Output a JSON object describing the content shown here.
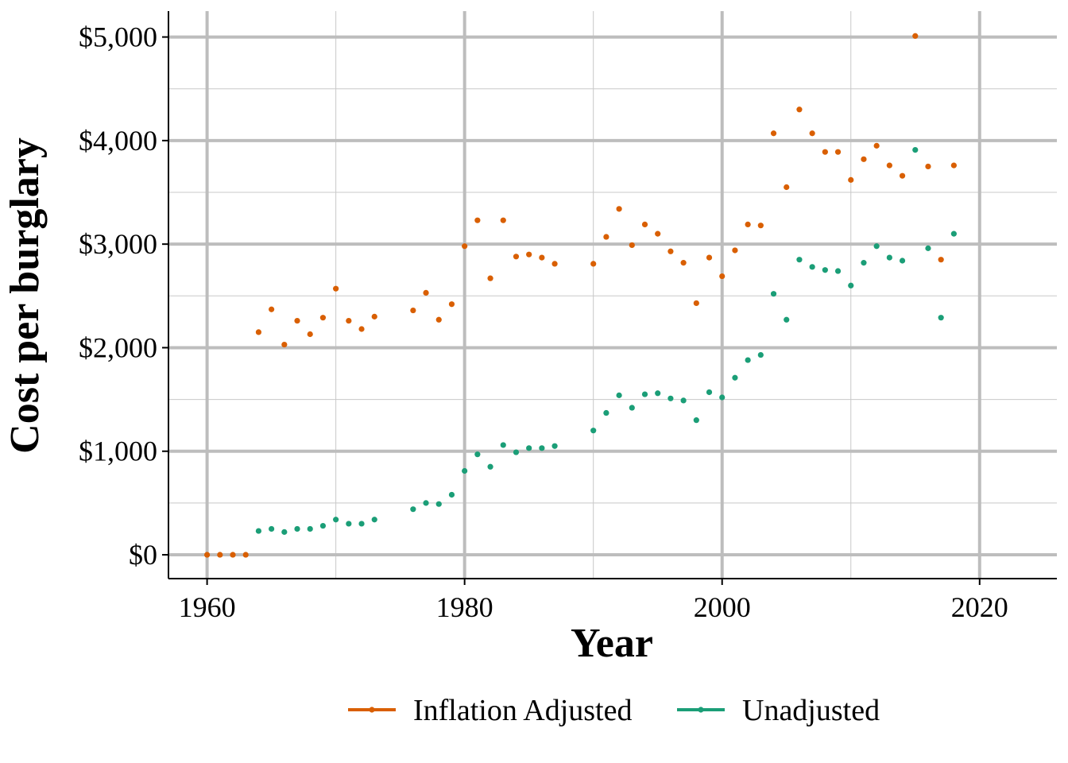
{
  "chart_data": {
    "type": "scatter",
    "title": "",
    "xlabel": "Year",
    "ylabel": "Cost per burglary",
    "xlim": [
      1957,
      2026
    ],
    "ylim": [
      -230,
      5250
    ],
    "x_ticks": [
      1960,
      1980,
      2000,
      2020
    ],
    "x_tick_labels": [
      "1960",
      "1980",
      "2000",
      "2020"
    ],
    "y_ticks": [
      0,
      1000,
      2000,
      3000,
      4000,
      5000
    ],
    "y_tick_labels": [
      "$0",
      "$1,000",
      "$2,000",
      "$3,000",
      "$4,000",
      "$5,000"
    ],
    "grid": true,
    "legend_position": "bottom",
    "series": [
      {
        "name": "Inflation Adjusted",
        "color": "#D95F02",
        "points": [
          [
            1960,
            0
          ],
          [
            1961,
            0
          ],
          [
            1962,
            0
          ],
          [
            1963,
            0
          ],
          [
            1964,
            2150
          ],
          [
            1965,
            2370
          ],
          [
            1966,
            2030
          ],
          [
            1967,
            2260
          ],
          [
            1968,
            2130
          ],
          [
            1969,
            2290
          ],
          [
            1970,
            2570
          ],
          [
            1971,
            2260
          ],
          [
            1972,
            2180
          ],
          [
            1973,
            2300
          ],
          [
            1976,
            2360
          ],
          [
            1977,
            2530
          ],
          [
            1978,
            2270
          ],
          [
            1979,
            2420
          ],
          [
            1980,
            2980
          ],
          [
            1981,
            3230
          ],
          [
            1982,
            2670
          ],
          [
            1983,
            3230
          ],
          [
            1984,
            2880
          ],
          [
            1985,
            2900
          ],
          [
            1986,
            2870
          ],
          [
            1987,
            2810
          ],
          [
            1990,
            2810
          ],
          [
            1991,
            3070
          ],
          [
            1992,
            3340
          ],
          [
            1993,
            2990
          ],
          [
            1994,
            3190
          ],
          [
            1995,
            3100
          ],
          [
            1996,
            2930
          ],
          [
            1997,
            2820
          ],
          [
            1998,
            2430
          ],
          [
            1999,
            2870
          ],
          [
            2000,
            2690
          ],
          [
            2001,
            2940
          ],
          [
            2002,
            3190
          ],
          [
            2003,
            3180
          ],
          [
            2004,
            4070
          ],
          [
            2005,
            3550
          ],
          [
            2006,
            4300
          ],
          [
            2007,
            4070
          ],
          [
            2008,
            3890
          ],
          [
            2009,
            3890
          ],
          [
            2010,
            3620
          ],
          [
            2011,
            3820
          ],
          [
            2012,
            3950
          ],
          [
            2013,
            3760
          ],
          [
            2014,
            3660
          ],
          [
            2015,
            5010
          ],
          [
            2016,
            3750
          ],
          [
            2017,
            2850
          ],
          [
            2018,
            3760
          ]
        ]
      },
      {
        "name": "Unadjusted",
        "color": "#1B9E77",
        "points": [
          [
            1964,
            230
          ],
          [
            1965,
            250
          ],
          [
            1966,
            220
          ],
          [
            1967,
            250
          ],
          [
            1968,
            250
          ],
          [
            1969,
            280
          ],
          [
            1970,
            340
          ],
          [
            1971,
            300
          ],
          [
            1972,
            300
          ],
          [
            1973,
            340
          ],
          [
            1976,
            440
          ],
          [
            1977,
            500
          ],
          [
            1978,
            490
          ],
          [
            1979,
            580
          ],
          [
            1980,
            810
          ],
          [
            1981,
            970
          ],
          [
            1982,
            850
          ],
          [
            1983,
            1060
          ],
          [
            1984,
            990
          ],
          [
            1985,
            1030
          ],
          [
            1986,
            1030
          ],
          [
            1987,
            1050
          ],
          [
            1990,
            1200
          ],
          [
            1991,
            1370
          ],
          [
            1992,
            1540
          ],
          [
            1993,
            1420
          ],
          [
            1994,
            1550
          ],
          [
            1995,
            1560
          ],
          [
            1996,
            1510
          ],
          [
            1997,
            1490
          ],
          [
            1998,
            1300
          ],
          [
            1999,
            1570
          ],
          [
            2000,
            1520
          ],
          [
            2001,
            1710
          ],
          [
            2002,
            1880
          ],
          [
            2003,
            1930
          ],
          [
            2004,
            2520
          ],
          [
            2005,
            2270
          ],
          [
            2006,
            2850
          ],
          [
            2007,
            2780
          ],
          [
            2008,
            2750
          ],
          [
            2009,
            2740
          ],
          [
            2010,
            2600
          ],
          [
            2011,
            2820
          ],
          [
            2012,
            2980
          ],
          [
            2013,
            2870
          ],
          [
            2014,
            2840
          ],
          [
            2015,
            3910
          ],
          [
            2016,
            2960
          ],
          [
            2017,
            2290
          ],
          [
            2018,
            3100
          ]
        ]
      }
    ]
  }
}
